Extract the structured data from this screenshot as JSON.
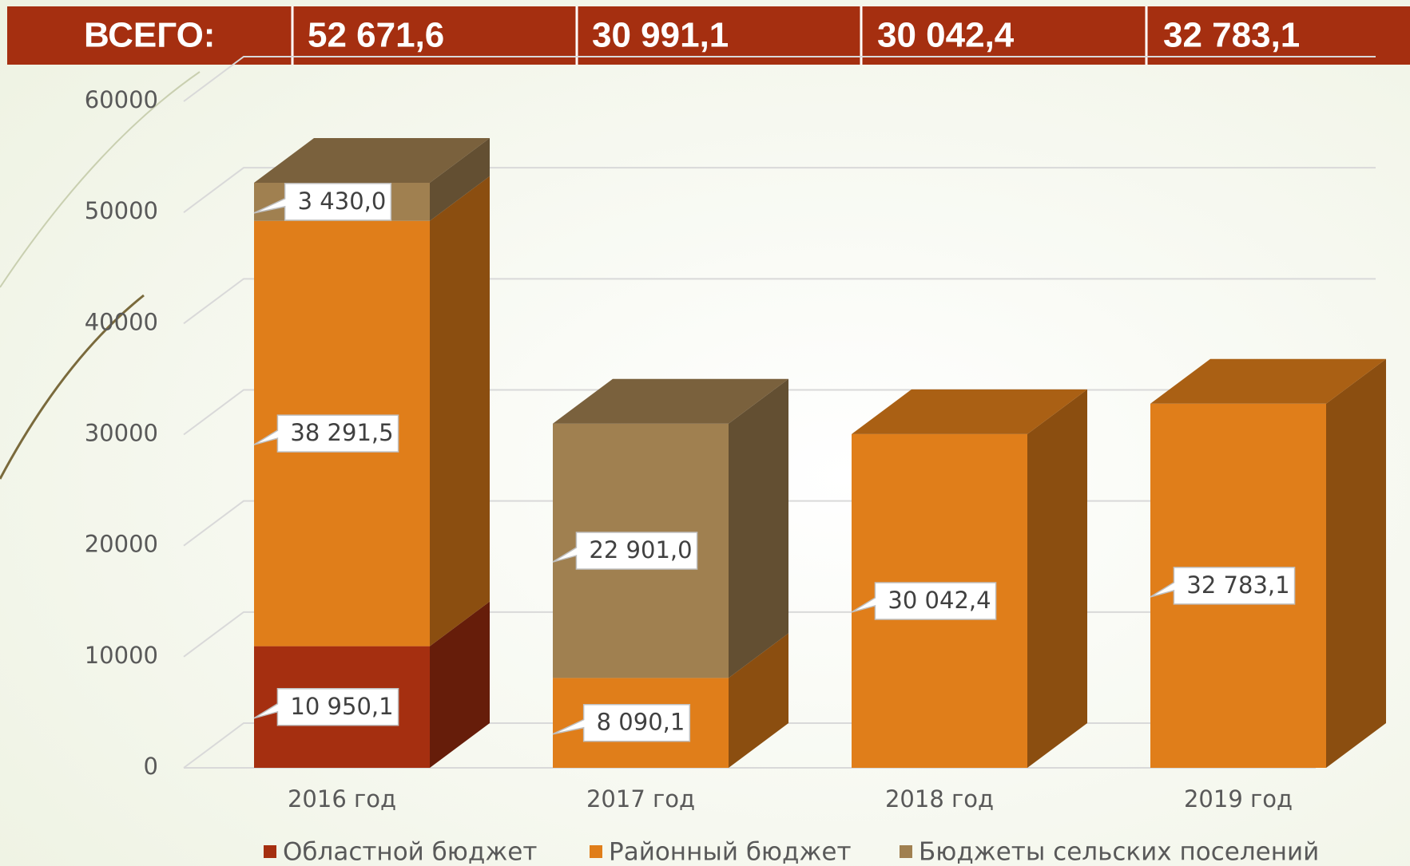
{
  "header": {
    "label": "ВСЕГО:",
    "totals": [
      "52 671,6",
      "30 991,1",
      "30 042,4",
      "32 783,1"
    ]
  },
  "chart_data": {
    "type": "bar3d_stacked",
    "categories": [
      "2016 год",
      "2017 год",
      "2018 год",
      "2019 год"
    ],
    "series": [
      {
        "name": "Областной бюджет",
        "color": "#a52f10",
        "values": [
          10950.1,
          null,
          null,
          null
        ],
        "value_labels": [
          "10 950,1",
          null,
          null,
          null
        ]
      },
      {
        "name": "Районный бюджет",
        "color": "#e07e1a",
        "values": [
          38291.5,
          8090.1,
          30042.4,
          32783.1
        ],
        "value_labels": [
          "38 291,5",
          "8 090,1",
          "30 042,4",
          "32 783,1"
        ]
      },
      {
        "name": "Бюджеты сельских поселений",
        "color": "#a08050",
        "values": [
          3430.0,
          22901.0,
          null,
          null
        ],
        "value_labels": [
          "3 430,0",
          "22 901,0",
          null,
          null
        ]
      }
    ],
    "ylim": [
      0,
      60000
    ],
    "yticks": [
      0,
      10000,
      20000,
      30000,
      40000,
      50000,
      60000
    ],
    "grid": true,
    "legend": "bottom"
  }
}
